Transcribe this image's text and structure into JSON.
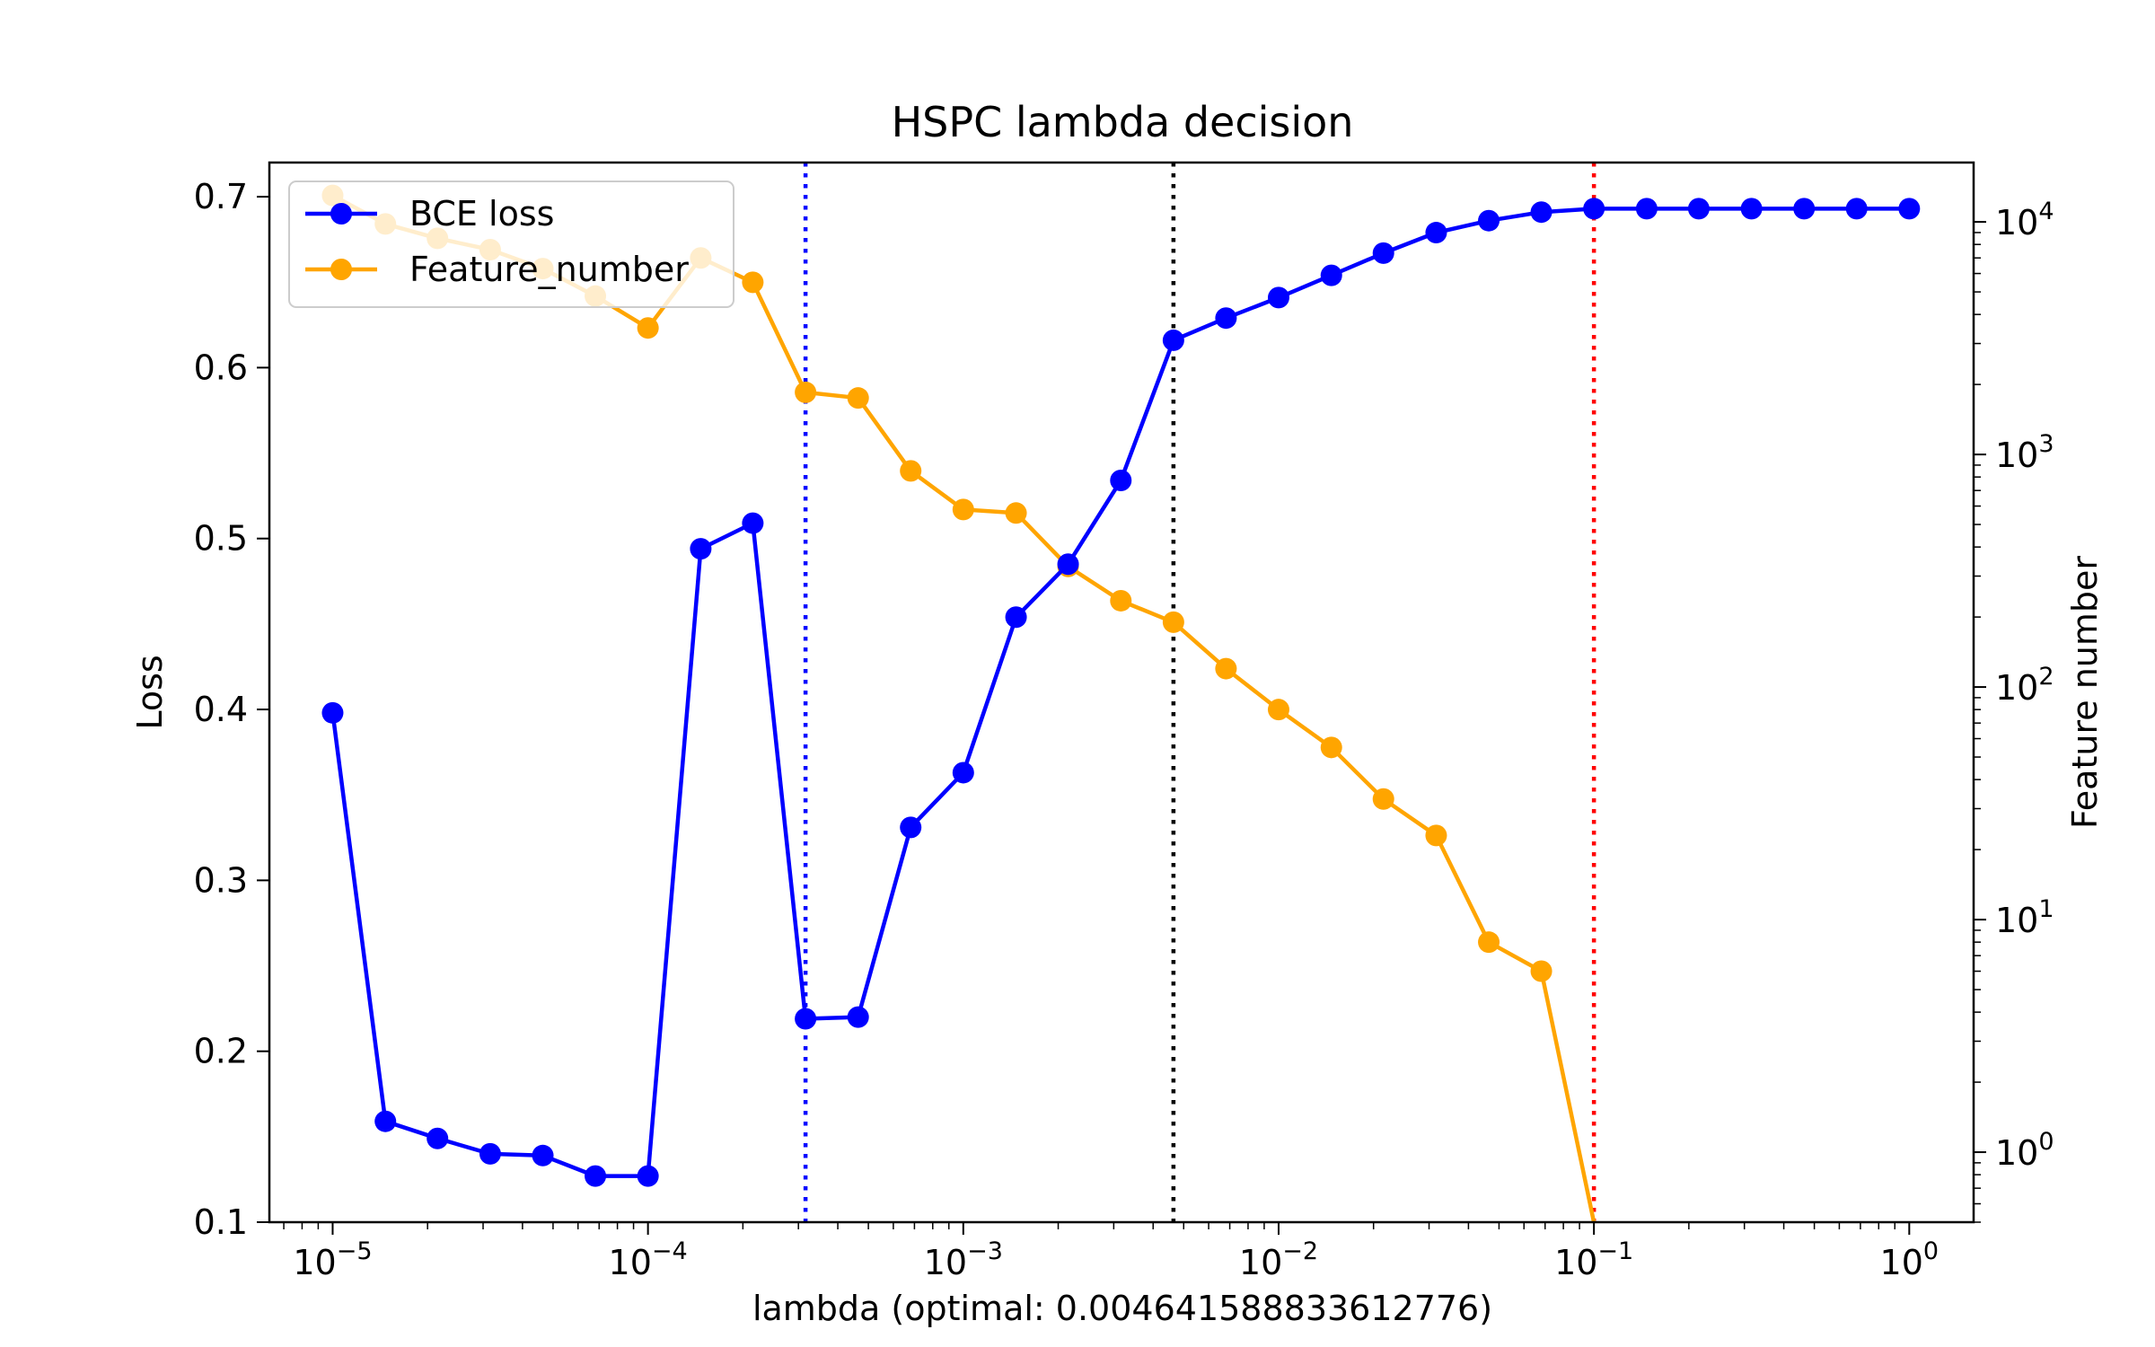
{
  "chart_data": {
    "type": "line",
    "title": "HSPC lambda decision",
    "xlabel": "lambda (optimal: 0.004641588833612776)",
    "ylabel_left": "Loss",
    "ylabel_right": "Feature number",
    "x_scale": "log",
    "xlim": [
      6.3e-06,
      1.6
    ],
    "ylim_left": [
      0.1,
      0.72
    ],
    "ylim_right": [
      0.5,
      18000
    ],
    "y_right_scale": "log",
    "x_ticks": [
      {
        "base": "10",
        "exp": "−5",
        "value": 1e-05
      },
      {
        "base": "10",
        "exp": "−4",
        "value": 0.0001
      },
      {
        "base": "10",
        "exp": "−3",
        "value": 0.001
      },
      {
        "base": "10",
        "exp": "−2",
        "value": 0.01
      },
      {
        "base": "10",
        "exp": "−1",
        "value": 0.1
      },
      {
        "base": "10",
        "exp": "0",
        "value": 1
      }
    ],
    "y_left_ticks": [
      "0.1",
      "0.2",
      "0.3",
      "0.4",
      "0.5",
      "0.6",
      "0.7"
    ],
    "y_left_tick_values": [
      0.1,
      0.2,
      0.3,
      0.4,
      0.5,
      0.6,
      0.7
    ],
    "y_right_ticks": [
      {
        "base": "10",
        "exp": "0",
        "value": 1
      },
      {
        "base": "10",
        "exp": "1",
        "value": 10
      },
      {
        "base": "10",
        "exp": "2",
        "value": 100
      },
      {
        "base": "10",
        "exp": "3",
        "value": 1000
      },
      {
        "base": "10",
        "exp": "4",
        "value": 10000
      }
    ],
    "x": [
      1e-05,
      1.47e-05,
      2.15e-05,
      3.16e-05,
      4.64e-05,
      6.81e-05,
      0.0001,
      0.000147,
      0.000215,
      0.000316,
      0.000464,
      0.000681,
      0.001,
      0.00147,
      0.00215,
      0.00316,
      0.00464,
      0.00681,
      0.01,
      0.0147,
      0.0215,
      0.0316,
      0.0464,
      0.0681,
      0.1,
      0.147,
      0.215,
      0.316,
      0.464,
      0.681,
      1.0
    ],
    "series": [
      {
        "name": "BCE loss",
        "axis": "left",
        "color": "#0000ff",
        "values": [
          0.398,
          0.159,
          0.149,
          0.14,
          0.139,
          0.127,
          0.127,
          0.494,
          0.509,
          0.219,
          0.22,
          0.331,
          0.363,
          0.454,
          0.485,
          0.534,
          0.616,
          0.629,
          0.641,
          0.654,
          0.667,
          0.679,
          0.686,
          0.691,
          0.693,
          0.693,
          0.693,
          0.693,
          0.693,
          0.693,
          0.693
        ]
      },
      {
        "name": "Feature_number",
        "axis": "right",
        "color": "#ffa500",
        "values": [
          13000,
          9800,
          8500,
          7600,
          6300,
          4800,
          3500,
          7000,
          5500,
          1850,
          1750,
          850,
          580,
          560,
          330,
          235,
          190,
          120,
          80,
          55,
          33,
          23,
          8,
          6,
          0,
          null,
          null,
          null,
          null,
          null,
          null
        ]
      }
    ],
    "vlines": [
      {
        "x": 0.000316,
        "color": "#0000ff",
        "style": "dotted"
      },
      {
        "x": 0.00464,
        "color": "#000000",
        "style": "dotted"
      },
      {
        "x": 0.1,
        "color": "#ff0000",
        "style": "dotted"
      }
    ],
    "legend": {
      "placement": "top-left",
      "entries": [
        "BCE loss",
        "Feature_number"
      ]
    },
    "grid": false
  }
}
